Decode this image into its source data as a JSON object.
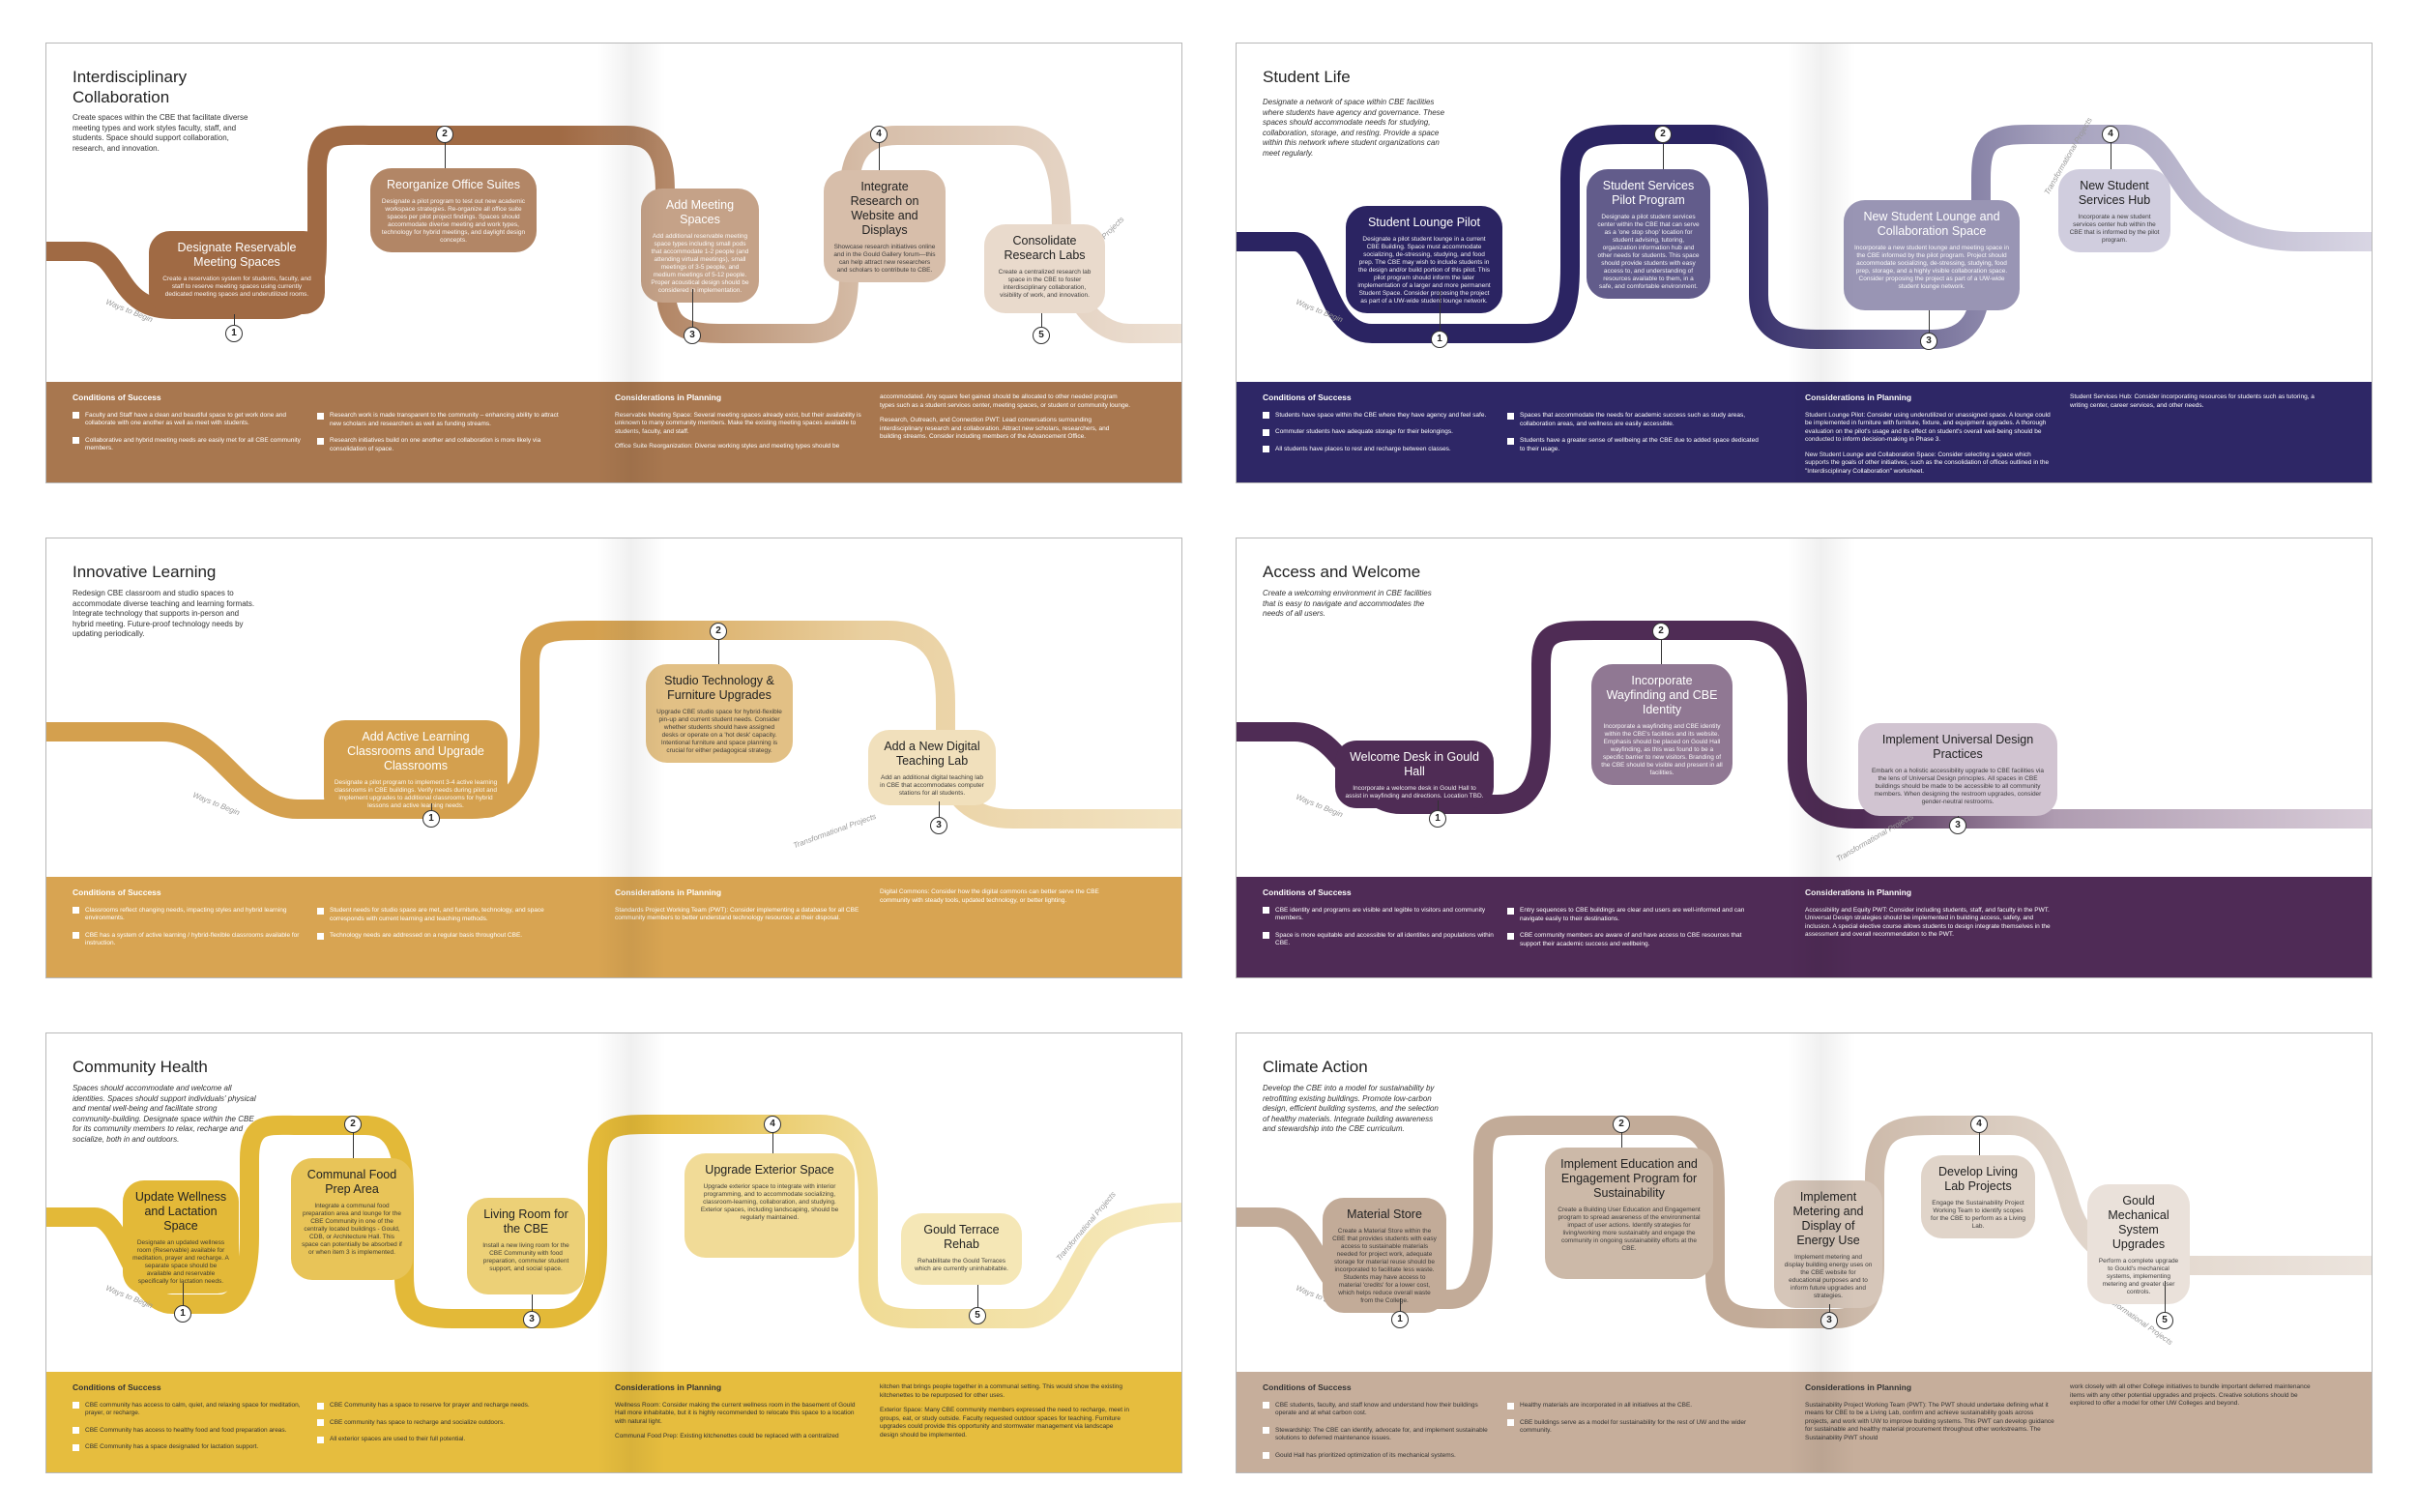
{
  "spreads": [
    {
      "title": "Interdisciplinary Collaboration",
      "intro": "Create spaces within the CBE that facilitate diverse meeting types and work styles faculty, staff, and students. Space should support collaboration, research, and innovation.",
      "intro_italic": false,
      "colors": {
        "road": "#a06a44",
        "light": "#ede0d3",
        "band": "#a8774f"
      },
      "start_label": "Ways to Begin",
      "trans_label": "Transformational Projects",
      "steps": [
        {
          "n": "1",
          "title": "Designate Reservable Meeting Spaces",
          "desc": "Create a reservation system for students, faculty, and staff to reserve meeting spaces using currently dedicated meeting spaces and underutilized rooms."
        },
        {
          "n": "2",
          "title": "Reorganize Office Suites",
          "desc": "Designate a pilot program to test out new academic workspace strategies. Re-organize all office suite spaces per pilot project findings. Spaces should accommodate diverse meeting and work types, technology for hybrid meetings, and daylight design concepts."
        },
        {
          "n": "3",
          "title": "Add Meeting Spaces",
          "desc": "Add additional reservable meeting space types including small pods that accommodate 1-2 people (and attending virtual meetings), small meetings of 3-5 people, and medium meetings of 5-12 people. Proper acoustical design should be considered in implementation."
        },
        {
          "n": "4",
          "title": "Integrate Research on Website and Displays",
          "desc": "Showcase research initiatives online and in the Gould Gallery forum—this can help attract new researchers and scholars to contribute to CBE."
        },
        {
          "n": "5",
          "title": "Consolidate Research Labs",
          "desc": "Create a centralized research lab space in the CBE to foster interdisciplinary collaboration, visibility of work, and innovation."
        }
      ],
      "conditions_title": "Conditions of Success",
      "conditions": [
        "Faculty and Staff have a clean and beautiful space to get work done and collaborate with one another as well as meet with students.",
        "Collaborative and hybrid meeting needs are easily met for all CBE community members.",
        "Research work is made transparent to the community – enhancing ability to attract new scholars and researchers as well as funding streams.",
        "Research initiatives build on one another and collaboration is more likely via consolidation of space."
      ],
      "planning_title": "Considerations in Planning",
      "planning": [
        "Reservable Meeting Space: Several meeting spaces already exist, but their availability is unknown to many community members. Make the existing meeting spaces available to students, faculty, and staff.",
        "Office Suite Reorganization: Diverse working styles and meeting types should be",
        "accommodated. Any square feet gained should be allocated to other needed program types such as a student services center, meeting spaces, or student or community lounge.",
        "Research, Outreach, and Connection PWT: Lead conversations surrounding interdisciplinary research and collaboration. Attract new scholars, researchers, and building streams. Consider including members of the Advancement Office."
      ]
    },
    {
      "title": "Student Life",
      "intro": "Designate a network of space within CBE facilities where students have agency and governance. These spaces should accommodate needs for studying, collaboration, storage, and resting. Provide a space within this network where student organizations can meet regularly.",
      "intro_italic": true,
      "colors": {
        "road": "#2b2462",
        "light": "#d9d6e4",
        "band": "#2e2766"
      },
      "start_label": "Ways to Begin",
      "trans_label": "Transformational Projects",
      "steps": [
        {
          "n": "1",
          "title": "Student Lounge Pilot",
          "desc": "Designate a pilot student lounge in a current CBE Building. Space must accommodate socializing, de-stressing, studying, and food prep. The CBE may wish to include students in the design and/or build portion of this pilot. This pilot program should inform the later implementation of a larger and more permanent Student Space. Consider proposing the project as part of a UW-wide student lounge network."
        },
        {
          "n": "2",
          "title": "Student Services Pilot Program",
          "desc": "Designate a pilot student services center within the CBE that can serve as a 'one stop shop' location for student advising, tutoring, organization information hub and other needs for students. This space should provide students with easy access to, and understanding of resources available to them, in a safe, and comfortable environment."
        },
        {
          "n": "3",
          "title": "New Student Lounge and Collaboration Space",
          "desc": "Incorporate a new student lounge and meeting space in the CBE informed by the pilot program. Project should accommodate socializing, de-stressing, studying, food prep, storage, and a highly visible collaboration space. Consider proposing the project as part of a UW-wide student lounge network."
        },
        {
          "n": "4",
          "title": "New Student Services Hub",
          "desc": "Incorporate a new student services center hub within the CBE that is informed by the pilot program."
        }
      ],
      "conditions_title": "Conditions of Success",
      "conditions": [
        "Students have space within the CBE where they have agency and feel safe.",
        "Commuter students have adequate storage for their belongings.",
        "All students have places to rest and recharge between classes.",
        "Spaces that accommodate the needs for academic success such as study areas, collaboration areas, and wellness are easily accessible.",
        "Students have a greater sense of wellbeing at the CBE due to added space dedicated to their usage."
      ],
      "planning_title": "Considerations in Planning",
      "planning": [
        "Student Lounge Pilot: Consider using underutilized or unassigned space. A lounge could be implemented in furniture with furniture, fixture, and equipment upgrades. A thorough evaluation on the pilot's usage and its effect on student's overall well-being should be conducted to inform decision-making in Phase 3.",
        "New Student Lounge and Collaboration Space: Consider selecting a space which supports the goals of other initiatives, such as the consolidation of offices outlined in the \"Interdisciplinary Collaboration\" worksheet.",
        "Student Services Hub: Consider incorporating resources for students such as tutoring, a writing center, career services, and other needs."
      ]
    },
    {
      "title": "Innovative Learning",
      "intro": "Redesign CBE classroom and studio spaces to accommodate diverse teaching and learning formats. Integrate technology that supports in-person and hybrid meeting. Future-proof technology needs by updating periodically.",
      "intro_italic": false,
      "colors": {
        "road": "#d4a04e",
        "light": "#f2e3c2",
        "band": "#d8a452"
      },
      "start_label": "Ways to Begin",
      "trans_label": "Transformational Projects",
      "steps": [
        {
          "n": "1",
          "title": "Add Active Learning Classrooms and Upgrade Classrooms",
          "desc": "Designate a pilot program to implement 3-4 active learning classrooms in CBE buildings. Verify needs during pilot and implement upgrades to additional classrooms for hybrid lessons and active learning needs."
        },
        {
          "n": "2",
          "title": "Studio Technology & Furniture Upgrades",
          "desc": "Upgrade CBE studio space for hybrid-flexible pin-up and current student needs. Consider whether students should have assigned desks or operate on a 'hot desk' capacity. Intentional furniture and space planning is crucial for either pedagogical strategy."
        },
        {
          "n": "3",
          "title": "Add a New Digital Teaching Lab",
          "desc": "Add an additional digital teaching lab in CBE that accommodates computer stations for all students."
        }
      ],
      "conditions_title": "Conditions of Success",
      "conditions": [
        "Classrooms reflect changing needs, impacting styles and hybrid learning environments.",
        "CBE has a system of active learning / hybrid-flexible classrooms available for instruction.",
        "Student needs for studio space are met, and furniture, technology, and space corresponds with current learning and teaching methods.",
        "Technology needs are addressed on a regular basis throughout CBE."
      ],
      "planning_title": "Considerations in Planning",
      "planning": [
        "Standards Project Working Team (PWT): Consider implementing a database for all CBE community members to better understand technology resources at their disposal.",
        "Digital Commons: Consider how the digital commons can better serve the CBE community with steady tools, updated technology, or better lighting."
      ]
    },
    {
      "title": "Access and Welcome",
      "intro": "Create a welcoming environment in CBE facilities that is easy to navigate and accommodates the needs of all users.",
      "intro_italic": true,
      "colors": {
        "road": "#4f2c55",
        "light": "#d8ccd8",
        "band": "#4f2b56"
      },
      "start_label": "Ways to Begin",
      "trans_label": "Transformational Projects",
      "steps": [
        {
          "n": "1",
          "title": "Welcome Desk in Gould Hall",
          "desc": "Incorporate a welcome desk in Gould Hall to assist in wayfinding and directions. Location TBD."
        },
        {
          "n": "2",
          "title": "Incorporate Wayfinding and CBE Identity",
          "desc": "Incorporate a wayfinding and CBE identity within the CBE's facilities and its website. Emphasis should be placed on Gould Hall wayfinding, as this was found to be a specific barrier to new visitors. Branding of the CBE should be visible and present in all facilities."
        },
        {
          "n": "3",
          "title": "Implement Universal Design Practices",
          "desc": "Embark on a holistic accessibility upgrade to CBE facilities via the lens of Universal Design principles. All spaces in CBE buildings should be made to be accessible to all community members. When designing the restroom upgrades, consider gender-neutral restrooms."
        }
      ],
      "conditions_title": "Conditions of Success",
      "conditions": [
        "CBE identity and programs are visible and legible to visitors and community members.",
        "Space is more equitable and accessible for all identities and populations within CBE.",
        "Entry sequences to CBE buildings are clear and users are well-informed and can navigate easily to their destinations.",
        "CBE community members are aware of and have access to CBE resources that support their academic success and wellbeing."
      ],
      "planning_title": "Considerations in Planning",
      "planning": [
        "Accessibility and Equity PWT: Consider including students, staff, and faculty in the PWT. Universal Design strategies should be implemented in building access, safety, and inclusion. A special elective course allows students to design integrate themselves in the assessment and overall recommendation to the PWT."
      ]
    },
    {
      "title": "Community Health",
      "intro": "Spaces should accommodate and welcome all identities. Spaces should support individuals' physical and mental well-being and facilitate strong community-building. Designate space within the CBE for its community members to relax, recharge and socialize, both in and outdoors.",
      "intro_italic": true,
      "colors": {
        "road": "#e3b938",
        "light": "#f6e9bd",
        "band": "#e6bd3e"
      },
      "start_label": "Ways to Begin",
      "trans_label": "Transformational Projects",
      "steps": [
        {
          "n": "1",
          "title": "Update Wellness and Lactation Space",
          "desc": "Designate an updated wellness room (Reservable) available for meditation, prayer and recharge. A separate space should be available and reservable specifically for lactation needs."
        },
        {
          "n": "2",
          "title": "Communal Food Prep Area",
          "desc": "Integrate a communal food preparation area and lounge for the CBE Community in one of the centrally located buildings - Gould, CDB, or Architecture Hall. This space can potentially be absorbed if or when item 3 is implemented."
        },
        {
          "n": "3",
          "title": "Living Room for the CBE",
          "desc": "Install a new living room for the CBE Community with food preparation, commuter student support, and social space."
        },
        {
          "n": "4",
          "title": "Upgrade Exterior Space",
          "desc": "Upgrade exterior space to integrate with interior programming, and to accommodate socializing, classroom-learning, collaboration, and studying. Exterior spaces, including landscaping, should be regularly maintained."
        },
        {
          "n": "5",
          "title": "Gould Terrace Rehab",
          "desc": "Rehabilitate the Gould Terraces which are currently uninhabitable."
        }
      ],
      "conditions_title": "Conditions of Success",
      "conditions": [
        "CBE community has access to calm, quiet, and relaxing space for meditation, prayer, or recharge.",
        "CBE Community has access to healthy food and food preparation areas.",
        "CBE Community has a space designated for lactation support.",
        "CBE Community has a space to reserve for prayer and recharge needs.",
        "CBE community has space to recharge and socialize outdoors.",
        "All exterior spaces are used to their full potential."
      ],
      "planning_title": "Considerations in Planning",
      "planning": [
        "Wellness Room: Consider making the current wellness room in the basement of Gould Hall more inhabitable, but it is highly recommended to relocate this space to a location with natural light.",
        "Communal Food Prep: Existing kitchenettes could be replaced with a centralized",
        "kitchen that brings people together in a communal setting. This would show the existing kitchenettes to be repurposed for other uses.",
        "Exterior Space: Many CBE community members expressed the need to recharge, meet in groups, eat, or study outside. Faculty requested outdoor spaces for teaching. Furniture upgrades could provide this opportunity and stormwater management via landscape design should be implemented."
      ]
    },
    {
      "title": "Climate Action",
      "intro": "Develop the CBE into a model for sustainability by retrofitting existing buildings. Promote low-carbon design, efficient building systems, and the selection of healthy materials. Integrate building awareness and stewardship into the CBE curriculum.",
      "intro_italic": true,
      "colors": {
        "road": "#c2ab98",
        "light": "#ece4dd",
        "band": "#c6ae9b"
      },
      "start_label": "Ways to Begin",
      "trans_label": "Transformational Projects",
      "steps": [
        {
          "n": "1",
          "title": "Material Store",
          "desc": "Create a Material Store within the CBE that provides students with easy access to sustainable materials needed for project work, adequate storage for material reuse should be incorporated to facilitate less waste. Students may have access to material 'credits' for a lower cost, which helps reduce overall waste from the College."
        },
        {
          "n": "2",
          "title": "Implement Education and Engagement Program for Sustainability",
          "desc": "Create a Building User Education and Engagement program to spread awareness of the environmental impact of user actions. Identify strategies for living/working more sustainably and engage the community in ongoing sustainability efforts at the CBE."
        },
        {
          "n": "3",
          "title": "Implement Metering and Display of Energy Use",
          "desc": "Implement metering and display building energy uses on the CBE website for educational purposes and to inform future upgrades and strategies."
        },
        {
          "n": "4",
          "title": "Develop Living Lab Projects",
          "desc": "Engage the Sustainability Project Working Team to identify scopes for the CBE to perform as a Living Lab."
        },
        {
          "n": "5",
          "title": "Gould Mechanical System Upgrades",
          "desc": "Perform a complete upgrade to Gould's mechanical systems, implementing metering and greater user controls."
        }
      ],
      "conditions_title": "Conditions of Success",
      "conditions": [
        "CBE students, faculty, and staff know and understand how their buildings operate and at what carbon cost.",
        "Stewardship: The CBE can identify, advocate for, and implement sustainable solutions to deferred maintenance issues.",
        "Gould Hall has prioritized optimization of its mechanical systems.",
        "Healthy materials are incorporated in all initiatives at the CBE.",
        "CBE buildings serve as a model for sustainability for the rest of UW and the wider community."
      ],
      "planning_title": "Considerations in Planning",
      "planning": [
        "Sustainability Project Working Team (PWT): The PWT should undertake defining what it means for CBE to be a Living Lab, confirm and achieve sustainability goals across projects, and work with UW to improve building systems. This PWT can develop guidance for sustainable and healthy material procurement throughout other workstreams. The Sustainability PWT should",
        "work closely with all other College initiatives to bundle important deferred maintenance items with any other potential upgrades and projects. Creative solutions should be explored to offer a model for other UW Colleges and beyond."
      ]
    }
  ]
}
